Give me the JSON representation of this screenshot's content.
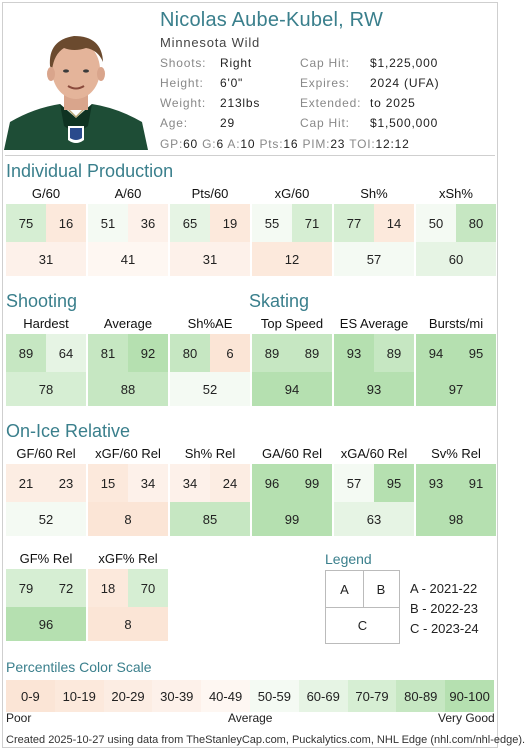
{
  "player": {
    "name": "Nicolas Aube-Kubel, RW",
    "team": "Minnesota Wild"
  },
  "bio": [
    {
      "label": "Shoots:",
      "value": "Right"
    },
    {
      "label": "Height:",
      "value": "6'0\""
    },
    {
      "label": "Weight:",
      "value": "213lbs"
    },
    {
      "label": "Age:",
      "value": "29"
    }
  ],
  "contract": [
    {
      "label": "Cap Hit:",
      "value": "$1,225,000"
    },
    {
      "label": "Expires:",
      "value": "2024 (UFA)"
    },
    {
      "label": "Extended:",
      "value": "to 2025"
    },
    {
      "label": "Cap Hit:",
      "value": "$1,500,000"
    }
  ],
  "season_line": [
    {
      "label": "GP:",
      "value": "60"
    },
    {
      "label": "G:",
      "value": "6"
    },
    {
      "label": "A:",
      "value": "10"
    },
    {
      "label": "Pts:",
      "value": "16"
    },
    {
      "label": "PIM:",
      "value": "23"
    },
    {
      "label": "TOI:",
      "value": "12:12"
    }
  ],
  "sections": {
    "individual": "Individual Production",
    "shooting": "Shooting",
    "skating": "Skating",
    "onice": "On-Ice Relative"
  },
  "metrics": {
    "individual": [
      {
        "label": "G/60",
        "a": 75,
        "b": 16,
        "c": 31
      },
      {
        "label": "A/60",
        "a": 51,
        "b": 36,
        "c": 41
      },
      {
        "label": "Pts/60",
        "a": 65,
        "b": 19,
        "c": 31
      },
      {
        "label": "xG/60",
        "a": 55,
        "b": 71,
        "c": 12
      },
      {
        "label": "Sh%",
        "a": 77,
        "b": 14,
        "c": 57
      },
      {
        "label": "xSh%",
        "a": 50,
        "b": 80,
        "c": 60
      }
    ],
    "shooting_skating": [
      {
        "label": "Hardest",
        "a": 89,
        "b": 64,
        "c": 78
      },
      {
        "label": "Average",
        "a": 81,
        "b": 92,
        "c": 88
      },
      {
        "label": "Sh%AE",
        "a": 80,
        "b": 6,
        "c": 52
      },
      {
        "label": "Top Speed",
        "a": 89,
        "b": 89,
        "c": 94
      },
      {
        "label": "ES Average",
        "a": 93,
        "b": 89,
        "c": 93
      },
      {
        "label": "Bursts/mi",
        "a": 94,
        "b": 95,
        "c": 97
      }
    ],
    "onice": [
      {
        "label": "GF/60 Rel",
        "a": 21,
        "b": 23,
        "c": 52
      },
      {
        "label": "xGF/60 Rel",
        "a": 15,
        "b": 34,
        "c": 8
      },
      {
        "label": "Sh% Rel",
        "a": 34,
        "b": 24,
        "c": 85
      },
      {
        "label": "GA/60 Rel",
        "a": 96,
        "b": 99,
        "c": 99
      },
      {
        "label": "xGA/60 Rel",
        "a": 57,
        "b": 95,
        "c": 63
      },
      {
        "label": "Sv% Rel",
        "a": 93,
        "b": 91,
        "c": 98
      }
    ],
    "onice2": [
      {
        "label": "GF% Rel",
        "a": 79,
        "b": 72,
        "c": 96
      },
      {
        "label": "xGF% Rel",
        "a": 18,
        "b": 70,
        "c": 8
      }
    ]
  },
  "legend": {
    "title": "Legend",
    "a": "A",
    "b": "B",
    "c": "C",
    "items": [
      "A - 2021-22",
      "B - 2022-23",
      "C - 2023-24"
    ]
  },
  "scale": {
    "title": "Percentiles Color Scale",
    "bins": [
      {
        "label": "0-9",
        "color": "#fbe5d6"
      },
      {
        "label": "10-19",
        "color": "#fce9dc"
      },
      {
        "label": "20-29",
        "color": "#fcede3"
      },
      {
        "label": "30-39",
        "color": "#fdf1ea"
      },
      {
        "label": "40-49",
        "color": "#fef7f2"
      },
      {
        "label": "50-59",
        "color": "#f4faf3"
      },
      {
        "label": "60-69",
        "color": "#e6f4e4"
      },
      {
        "label": "70-79",
        "color": "#d6eed3"
      },
      {
        "label": "80-89",
        "color": "#c6e7c2"
      },
      {
        "label": "90-100",
        "color": "#b5e0b0"
      }
    ],
    "poor": "Poor",
    "average": "Average",
    "very_good": "Very Good"
  },
  "footer": "Created 2025-10-27 using data from TheStanleyCap.com, Puckalytics.com, NHL Edge (nhl.com/nhl-edge)."
}
